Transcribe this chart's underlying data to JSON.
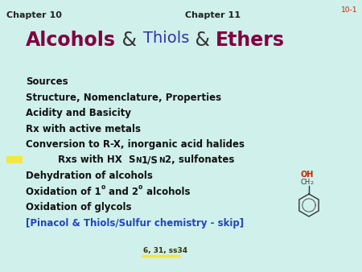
{
  "bg_color": "#cff0eb",
  "chapter_left": "Chapter 10",
  "chapter_right": "Chapter 11",
  "slide_num": "10-1",
  "title_alcohols_color": "#800040",
  "title_amp_color": "#333333",
  "title_thiols_color": "#3333aa",
  "title_ethers_color": "#800040",
  "bullet_color": "#111111",
  "blue_color": "#2244bb",
  "red_color": "#cc2200",
  "yellow_color": "#f5e642",
  "slide_num_color": "#cc2200",
  "chapter_fontsize": 8,
  "title_fontsize_big": 17,
  "title_fontsize_small": 14,
  "bullet_fontsize": 8.5
}
